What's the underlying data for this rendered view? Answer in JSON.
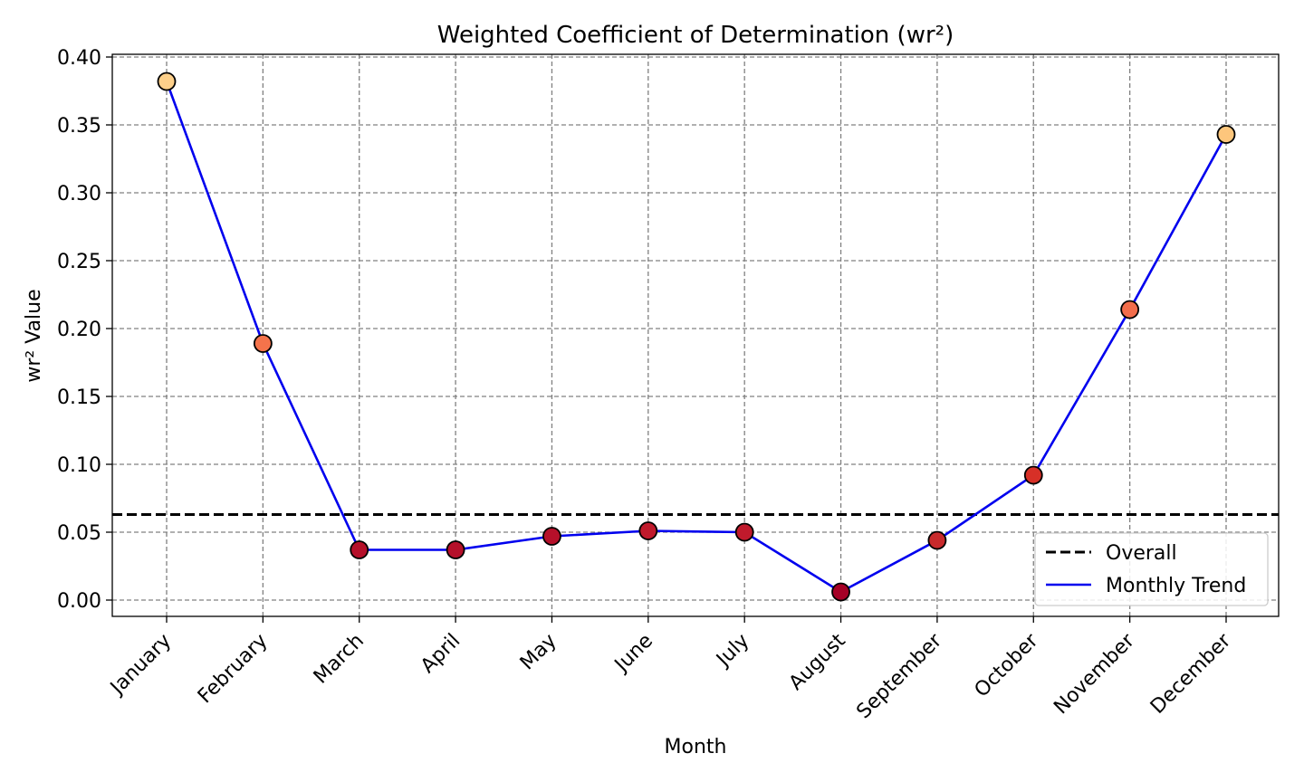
{
  "chart_data": {
    "type": "line",
    "title": "Weighted Coefficient of Determination (wr²)",
    "xlabel": "Month",
    "ylabel": "wr² Value",
    "categories": [
      "January",
      "February",
      "March",
      "April",
      "May",
      "June",
      "July",
      "August",
      "September",
      "October",
      "November",
      "December"
    ],
    "series": [
      {
        "name": "Monthly Trend",
        "values": [
          0.382,
          0.189,
          0.037,
          0.037,
          0.047,
          0.051,
          0.05,
          0.006,
          0.044,
          0.092,
          0.214,
          0.343
        ],
        "line_color": "#0000ee",
        "marker_colors": [
          "#fdd08a",
          "#f4734b",
          "#b5102a",
          "#b5102a",
          "#b5102a",
          "#c01a2c",
          "#c01a2c",
          "#a50026",
          "#c82a2c",
          "#d73027",
          "#f26d4b",
          "#fdc67c"
        ]
      }
    ],
    "reference_line": {
      "name": "Overall",
      "value": 0.063,
      "color": "#000000",
      "style": "dashed"
    },
    "ylim": [
      -0.012,
      0.402
    ],
    "yticks": [
      "0.00",
      "0.05",
      "0.10",
      "0.15",
      "0.20",
      "0.25",
      "0.30",
      "0.35",
      "0.40"
    ],
    "grid": true,
    "legend_position": "lower-right",
    "legend_entries": [
      "Overall",
      "Monthly Trend"
    ]
  }
}
